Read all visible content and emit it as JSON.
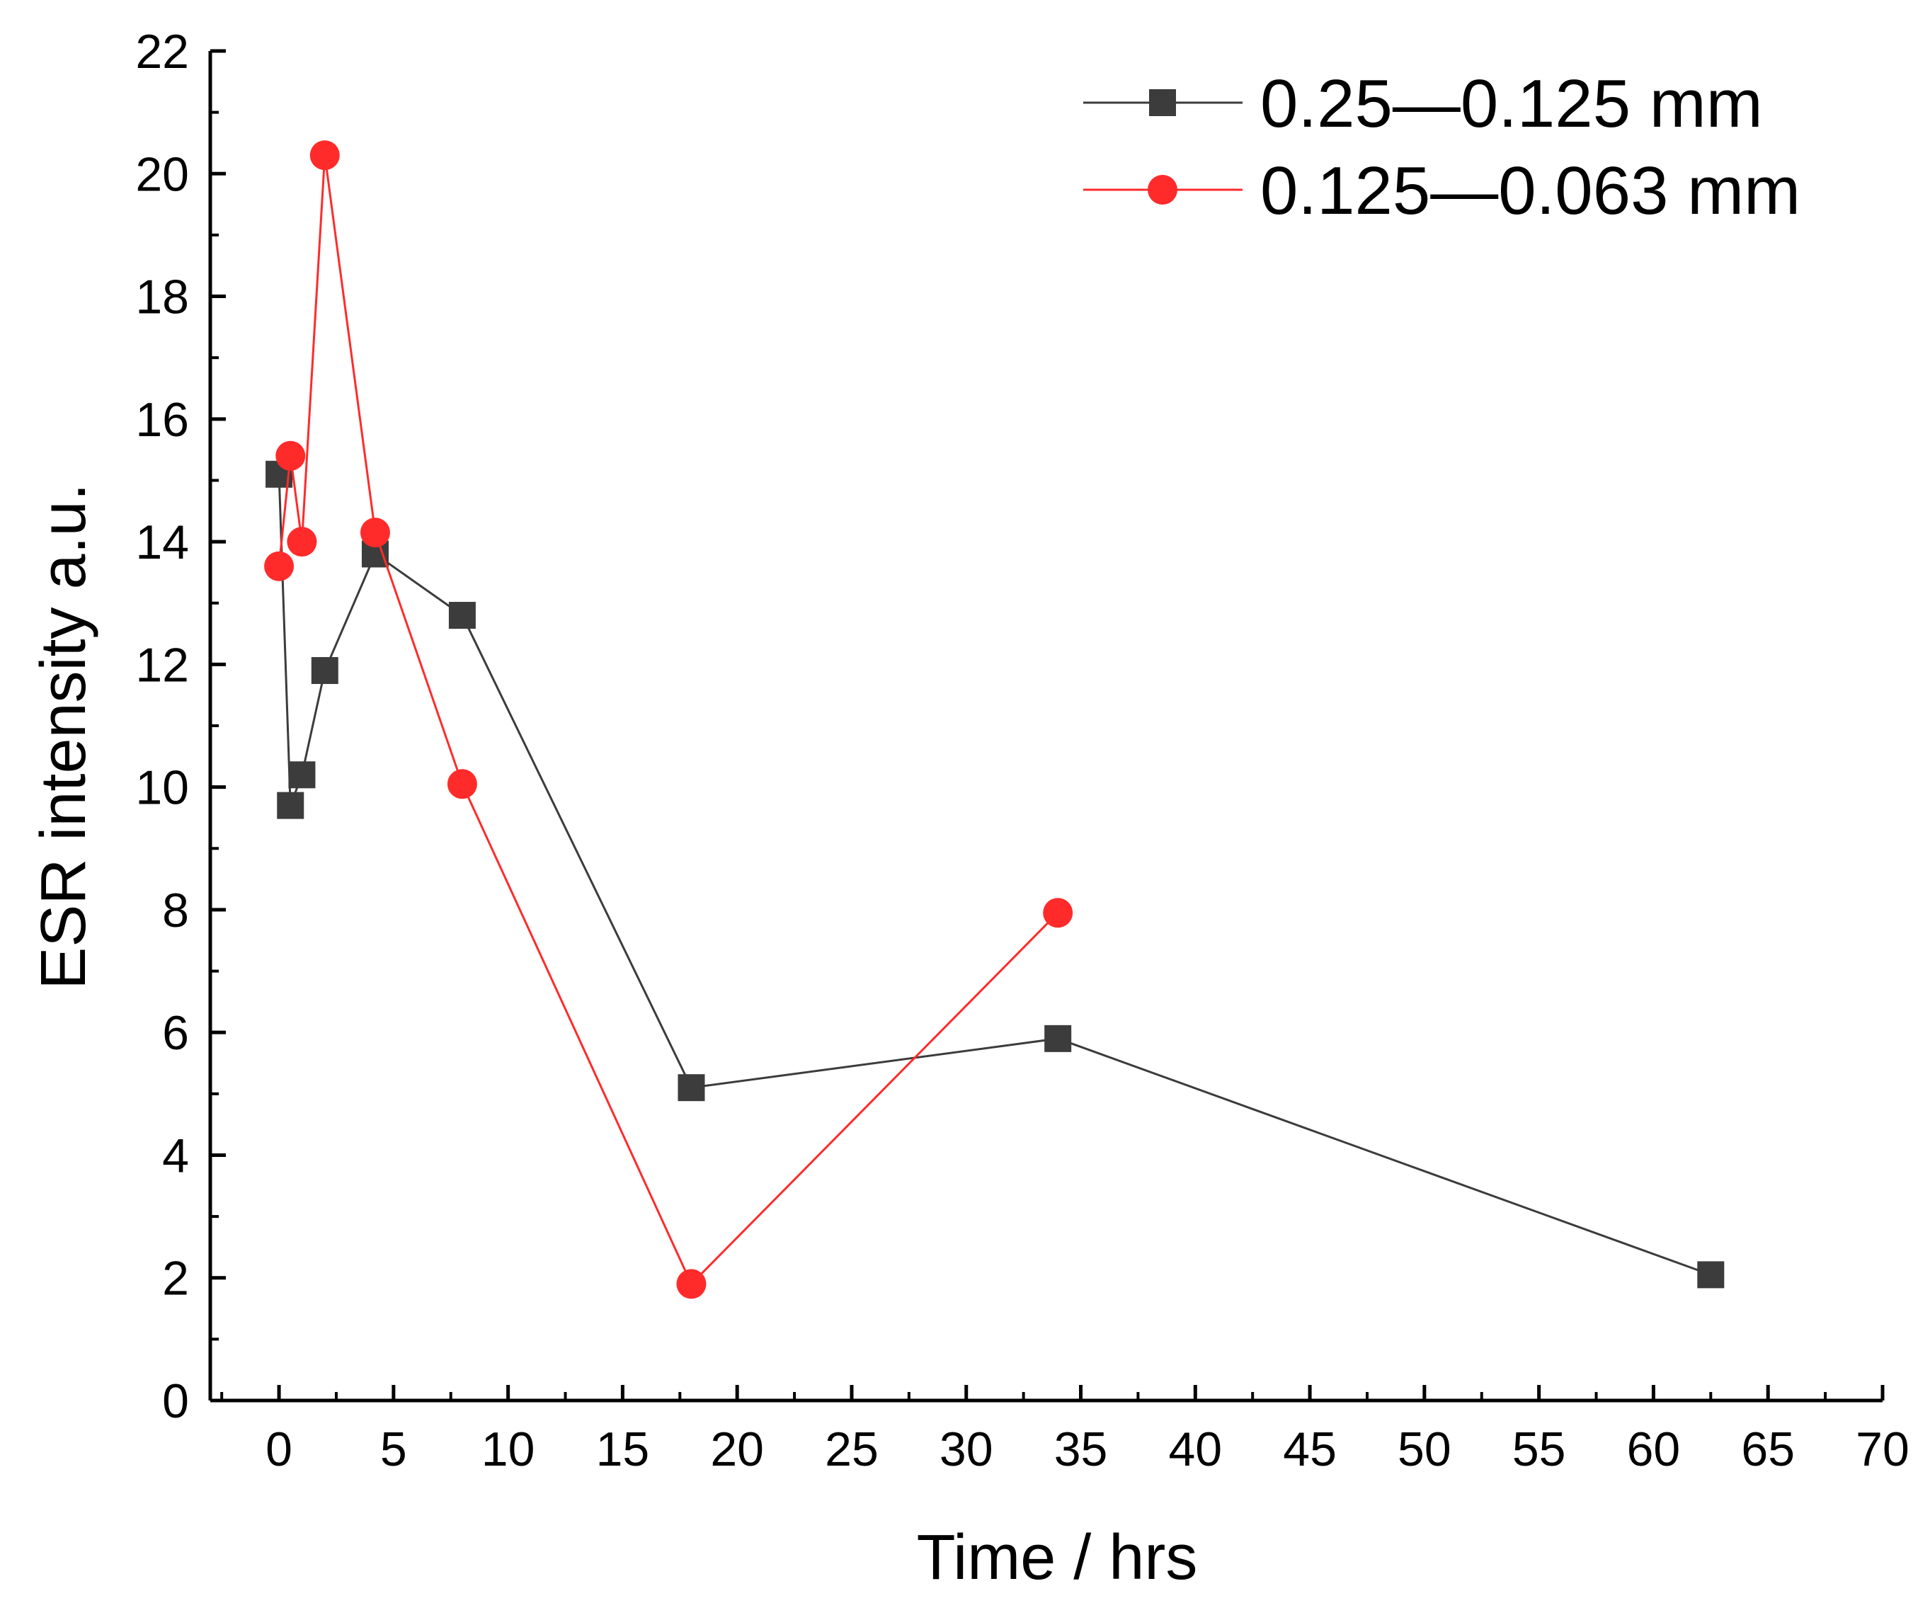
{
  "chart_data": {
    "type": "line",
    "title": "",
    "xlabel": "Time / hrs",
    "ylabel": "ESR intensity  a.u.",
    "xlim": [
      -3,
      70
    ],
    "ylim": [
      0,
      22
    ],
    "x_ticks": [
      0,
      5,
      10,
      15,
      20,
      25,
      30,
      35,
      40,
      45,
      50,
      55,
      60,
      65,
      70
    ],
    "y_ticks": [
      0,
      2,
      4,
      6,
      8,
      10,
      12,
      14,
      16,
      18,
      20,
      22
    ],
    "legend_position": "top-right",
    "grid": false,
    "series": [
      {
        "name": "0.25—0.125 mm",
        "color": "#3c3c3c",
        "marker": "square",
        "x": [
          0,
          0.5,
          1,
          2,
          4.2,
          8,
          18,
          34,
          62.5
        ],
        "y": [
          15.1,
          9.7,
          10.2,
          11.9,
          13.8,
          12.8,
          5.1,
          5.9,
          2.05
        ]
      },
      {
        "name": "0.125—0.063 mm",
        "color": "#ff2b2b",
        "marker": "circle",
        "x": [
          0,
          0.5,
          1,
          2,
          4.2,
          8,
          18,
          34
        ],
        "y": [
          13.6,
          15.4,
          14.0,
          20.3,
          14.15,
          10.05,
          1.9,
          7.95
        ]
      }
    ]
  }
}
